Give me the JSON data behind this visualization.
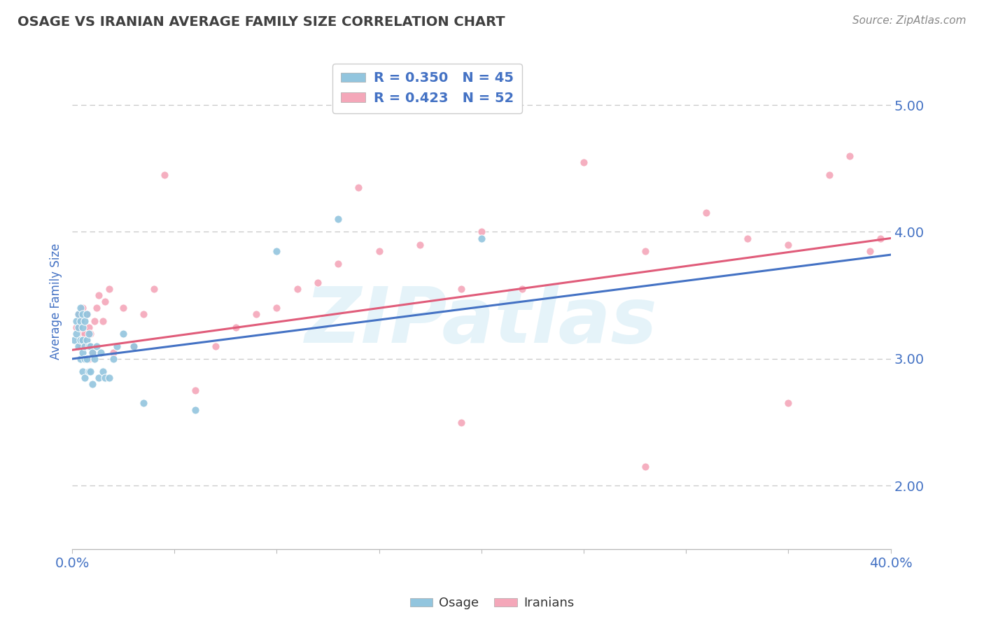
{
  "title": "OSAGE VS IRANIAN AVERAGE FAMILY SIZE CORRELATION CHART",
  "source_text": "Source: ZipAtlas.com",
  "ylabel": "Average Family Size",
  "xlim": [
    0.0,
    0.4
  ],
  "ylim": [
    1.5,
    5.4
  ],
  "yticks": [
    2.0,
    3.0,
    4.0,
    5.0
  ],
  "watermark": "ZIPatlas",
  "osage_color": "#92c5de",
  "iranians_color": "#f4a7b9",
  "osage_line_color": "#4472c4",
  "iranians_line_color": "#e05c7a",
  "grid_color": "#c8c8c8",
  "background_color": "#ffffff",
  "title_color": "#404040",
  "axis_label_color": "#4472c4",
  "tick_label_color": "#4472c4",
  "source_color": "#888888",
  "legend_label_color": "#4472c4",
  "R_osage": 0.35,
  "N_osage": 45,
  "R_iranians": 0.423,
  "N_iranians": 52,
  "osage_line": {
    "x0": 0.0,
    "y0": 3.0,
    "x1": 0.4,
    "y1": 3.82
  },
  "iranians_line": {
    "x0": 0.0,
    "y0": 3.07,
    "x1": 0.4,
    "y1": 3.95
  },
  "osage_x": [
    0.001,
    0.002,
    0.002,
    0.003,
    0.003,
    0.003,
    0.004,
    0.004,
    0.004,
    0.004,
    0.005,
    0.005,
    0.005,
    0.005,
    0.005,
    0.006,
    0.006,
    0.006,
    0.006,
    0.007,
    0.007,
    0.007,
    0.008,
    0.008,
    0.008,
    0.009,
    0.009,
    0.01,
    0.01,
    0.011,
    0.012,
    0.013,
    0.014,
    0.015,
    0.016,
    0.018,
    0.02,
    0.022,
    0.025,
    0.03,
    0.035,
    0.06,
    0.1,
    0.13,
    0.2
  ],
  "osage_y": [
    3.15,
    3.3,
    3.2,
    3.1,
    3.25,
    3.35,
    3.0,
    3.15,
    3.3,
    3.4,
    2.9,
    3.05,
    3.15,
    3.25,
    3.35,
    2.85,
    3.0,
    3.1,
    3.3,
    3.0,
    3.15,
    3.35,
    2.9,
    3.1,
    3.2,
    2.9,
    3.1,
    2.8,
    3.05,
    3.0,
    3.1,
    2.85,
    3.05,
    2.9,
    2.85,
    2.85,
    3.0,
    3.1,
    3.2,
    3.1,
    2.65,
    2.6,
    3.85,
    4.1,
    3.95
  ],
  "iranians_x": [
    0.002,
    0.003,
    0.004,
    0.004,
    0.005,
    0.005,
    0.006,
    0.006,
    0.007,
    0.007,
    0.008,
    0.008,
    0.009,
    0.01,
    0.011,
    0.012,
    0.013,
    0.015,
    0.016,
    0.018,
    0.02,
    0.025,
    0.03,
    0.035,
    0.04,
    0.045,
    0.06,
    0.07,
    0.08,
    0.09,
    0.1,
    0.11,
    0.12,
    0.13,
    0.14,
    0.15,
    0.17,
    0.19,
    0.2,
    0.22,
    0.25,
    0.28,
    0.31,
    0.33,
    0.35,
    0.37,
    0.38,
    0.39,
    0.395,
    0.19,
    0.28,
    0.35
  ],
  "iranians_y": [
    3.25,
    3.35,
    3.1,
    3.3,
    3.2,
    3.4,
    3.0,
    3.2,
    3.1,
    3.35,
    3.0,
    3.25,
    3.2,
    3.05,
    3.3,
    3.4,
    3.5,
    3.3,
    3.45,
    3.55,
    3.05,
    3.4,
    3.1,
    3.35,
    3.55,
    4.45,
    2.75,
    3.1,
    3.25,
    3.35,
    3.4,
    3.55,
    3.6,
    3.75,
    4.35,
    3.85,
    3.9,
    3.55,
    4.0,
    3.55,
    4.55,
    3.85,
    4.15,
    3.95,
    3.9,
    4.45,
    4.6,
    3.85,
    3.95,
    2.5,
    2.15,
    2.65
  ]
}
